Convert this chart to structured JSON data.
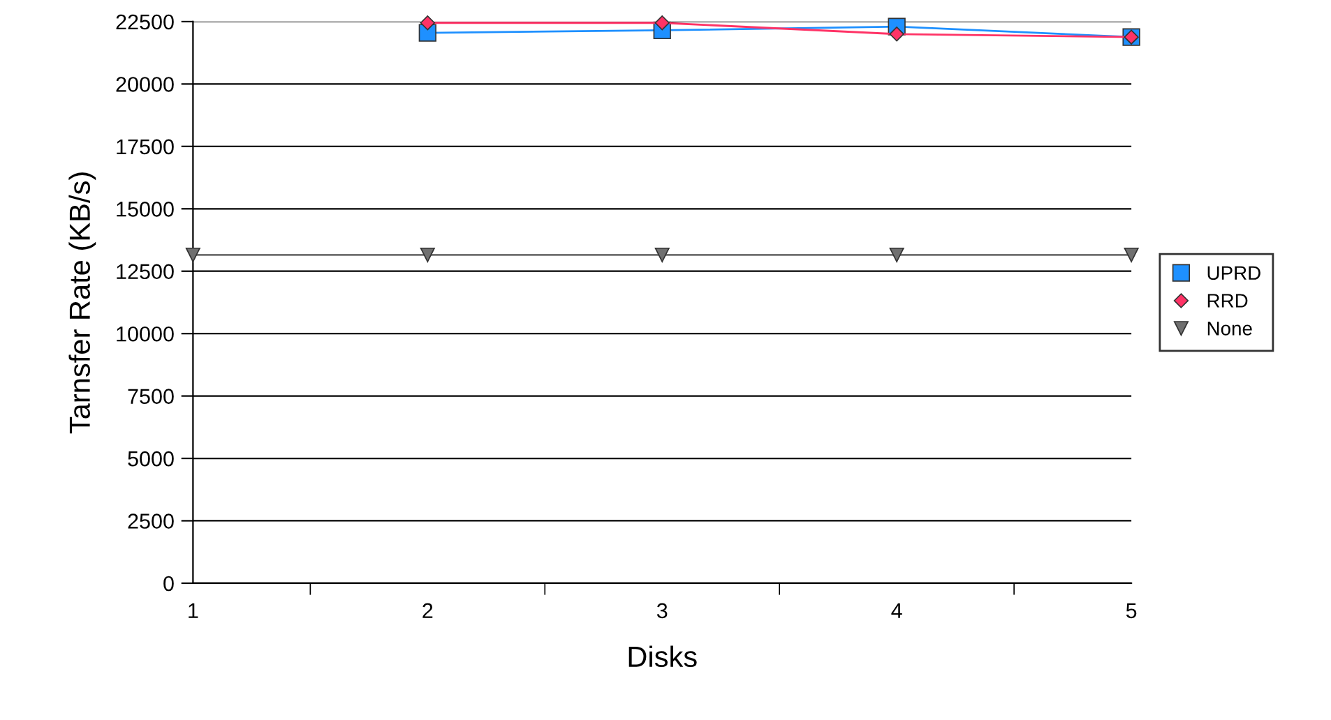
{
  "chart_data": {
    "type": "line",
    "xlabel": "Disks",
    "ylabel": "Tarnsfer Rate (KB/s)",
    "categories": [
      "1",
      "2",
      "3",
      "4",
      "5"
    ],
    "series": [
      {
        "name": "UPRD",
        "color": "#1e90ff",
        "marker": "square",
        "values": [
          null,
          22050,
          22150,
          22300,
          21880
        ]
      },
      {
        "name": "RRD",
        "color": "#ff3366",
        "marker": "diamond",
        "values": [
          null,
          22450,
          22450,
          22000,
          21880
        ]
      },
      {
        "name": "None",
        "color": "#707070",
        "marker": "triangle",
        "values": [
          13150,
          13150,
          13150,
          13150,
          13150
        ]
      }
    ],
    "ylim": [
      0,
      22500
    ],
    "yticks": [
      0,
      2500,
      5000,
      7500,
      10000,
      12500,
      15000,
      17500,
      20000,
      22500
    ],
    "grid": "y",
    "legend": "right",
    "line_style": "solid"
  }
}
